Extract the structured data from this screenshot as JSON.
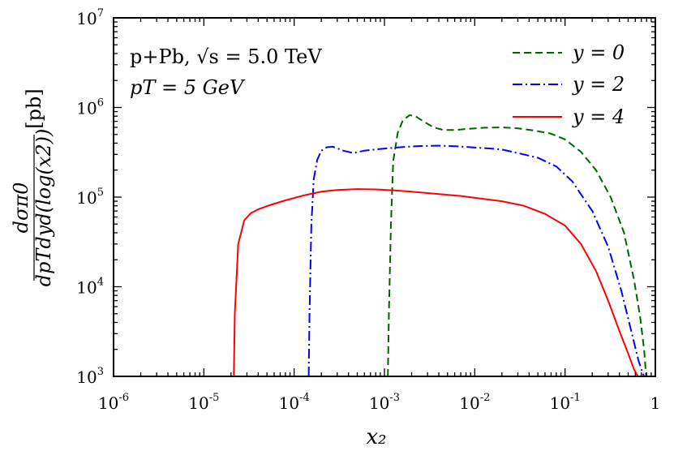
{
  "chart_data": {
    "type": "line",
    "xscale": "log",
    "yscale": "log",
    "xlim": [
      1e-06,
      1
    ],
    "ylim": [
      1000,
      10000000
    ],
    "grid": false,
    "legend_position": "top-right",
    "x_ticks": [
      {
        "base": "10",
        "exp": "-6"
      },
      {
        "base": "10",
        "exp": "-5"
      },
      {
        "base": "10",
        "exp": "-4"
      },
      {
        "base": "10",
        "exp": "-3"
      },
      {
        "base": "10",
        "exp": "-2"
      },
      {
        "base": "10",
        "exp": "-1"
      },
      {
        "base": "1",
        "exp": ""
      }
    ],
    "y_ticks": [
      {
        "base": "10",
        "exp": "3"
      },
      {
        "base": "10",
        "exp": "4"
      },
      {
        "base": "10",
        "exp": "5"
      },
      {
        "base": "10",
        "exp": "6"
      },
      {
        "base": "10",
        "exp": "7"
      }
    ],
    "xlabel": "x₂",
    "ylabel": {
      "numerator": "dσπ0",
      "denominator": "dpTdyd(log(x2))",
      "unit": "[pb]"
    },
    "annotations": [
      "p+Pb, √s = 5.0 TeV",
      "pT = 5 GeV"
    ],
    "series": [
      {
        "name": "y = 0",
        "color": "#006400",
        "dash": "dashed",
        "x": [
          0.00109,
          0.00112,
          0.00118,
          0.00125,
          0.0014,
          0.0016,
          0.0019,
          0.0022,
          0.0027,
          0.0035,
          0.0045,
          0.006,
          0.009,
          0.013,
          0.02,
          0.03,
          0.045,
          0.07,
          0.1,
          0.15,
          0.22,
          0.32,
          0.45,
          0.58,
          0.68,
          0.75,
          0.79
        ],
        "y": [
          1000,
          5000,
          50000,
          250000,
          520000,
          720000,
          820000,
          800000,
          700000,
          600000,
          560000,
          560000,
          580000,
          595000,
          600000,
          585000,
          555000,
          510000,
          440000,
          320000,
          200000,
          100000,
          40000,
          12000,
          4500,
          2000,
          1000
        ]
      },
      {
        "name": "y = 2",
        "color": "#0000ff",
        "dash": "dashdot",
        "x": [
          0.000145,
          0.000148,
          0.000155,
          0.000165,
          0.00018,
          0.0002,
          0.00023,
          0.00027,
          0.00035,
          0.00045,
          0.0006,
          0.0009,
          0.0015,
          0.0025,
          0.004,
          0.006,
          0.009,
          0.014,
          0.02,
          0.03,
          0.05,
          0.08,
          0.12,
          0.2,
          0.3,
          0.42,
          0.55,
          0.65,
          0.72,
          0.75
        ],
        "y": [
          1000,
          5000,
          50000,
          160000,
          260000,
          330000,
          360000,
          365000,
          330000,
          310000,
          330000,
          345000,
          360000,
          372000,
          375000,
          370000,
          360000,
          350000,
          340000,
          310000,
          275000,
          220000,
          150000,
          70000,
          28000,
          9000,
          3000,
          1500,
          1100,
          1000
        ]
      },
      {
        "name": "y = 4",
        "color": "#ff0000",
        "dash": "solid",
        "x": [
          2.15e-05,
          2.2e-05,
          2.4e-05,
          2.8e-05,
          3.3e-05,
          4e-05,
          5.5e-05,
          8e-05,
          0.00013,
          0.0002,
          0.0003,
          0.0005,
          0.0008,
          0.0013,
          0.002,
          0.003,
          0.0045,
          0.007,
          0.012,
          0.02,
          0.035,
          0.06,
          0.1,
          0.15,
          0.22,
          0.3,
          0.4,
          0.5,
          0.58,
          0.64
        ],
        "y": [
          1000,
          5000,
          30000,
          55000,
          66000,
          73000,
          82000,
          92000,
          105000,
          115000,
          120000,
          123000,
          122000,
          119000,
          115000,
          111000,
          107000,
          103000,
          96000,
          90000,
          80000,
          65000,
          48000,
          30000,
          15000,
          7000,
          3200,
          1800,
          1200,
          1000
        ]
      }
    ]
  }
}
